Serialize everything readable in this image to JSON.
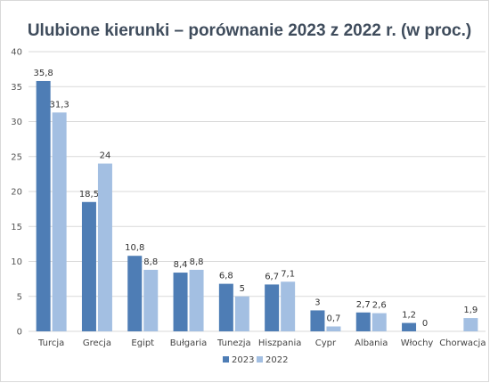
{
  "chart_data": {
    "type": "bar",
    "title": "Ulubione kierunki – porównanie 2023 z 2022 r. (w proc.)",
    "categories": [
      "Turcja",
      "Grecja",
      "Egipt",
      "Bułgaria",
      "Tunezja",
      "Hiszpania",
      "Cypr",
      "Albania",
      "Włochy",
      "Chorwacja"
    ],
    "series": [
      {
        "name": "2023",
        "values": [
          35.8,
          18.5,
          10.8,
          8.4,
          6.8,
          6.7,
          3,
          2.7,
          1.2,
          null
        ],
        "labels": [
          "35,8",
          "18,5",
          "10,8",
          "8,4",
          "6,8",
          "6,7",
          "3",
          "2,7",
          "1,2",
          ""
        ],
        "color": "#4e7db5"
      },
      {
        "name": "2022",
        "values": [
          31.3,
          24,
          8.8,
          8.8,
          5,
          7.1,
          0.7,
          2.6,
          0,
          1.9
        ],
        "labels": [
          "31,3",
          "24",
          "8,8",
          "8,8",
          "5",
          "7,1",
          "0,7",
          "2,6",
          "0",
          "1,9"
        ],
        "color": "#a3bfe2"
      }
    ],
    "ylim": [
      0,
      40
    ],
    "yticks": [
      0,
      5,
      10,
      15,
      20,
      25,
      30,
      35,
      40
    ],
    "grid": true,
    "legend_position": "bottom-center"
  }
}
